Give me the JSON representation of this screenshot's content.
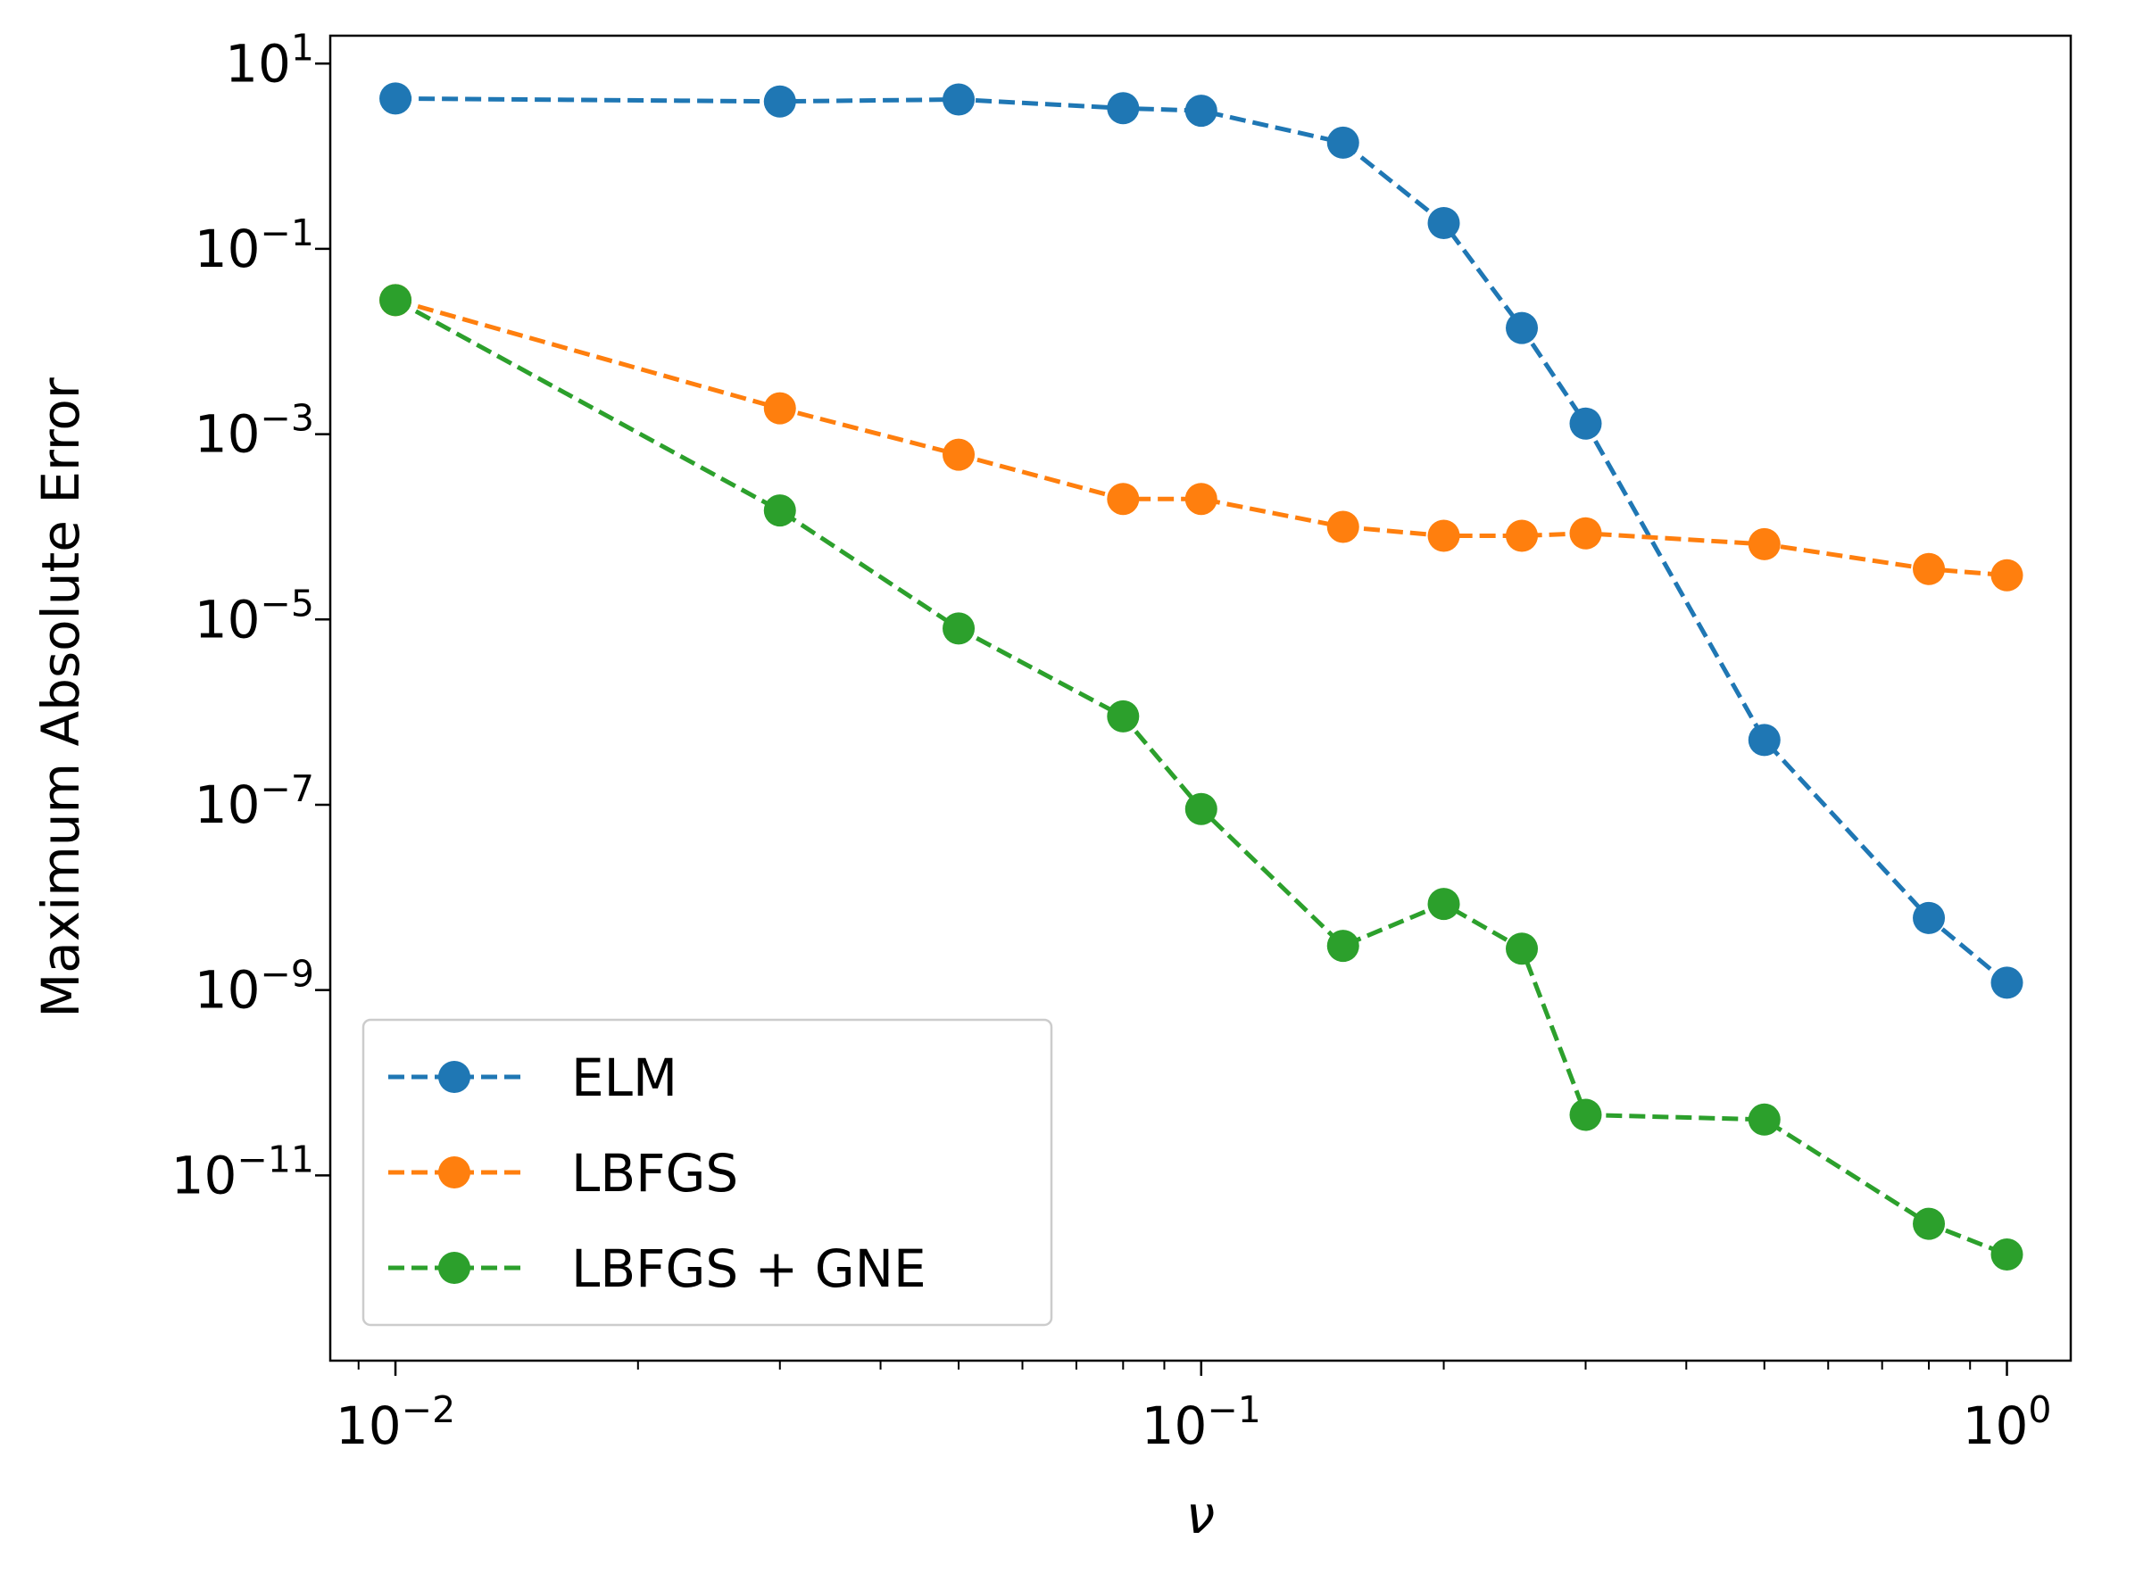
{
  "chart_data": {
    "type": "line",
    "title": "",
    "xlabel": "ν",
    "ylabel": "Maximum Absolute Error",
    "xscale": "log",
    "yscale": "log",
    "xlim": [
      0.0083,
      1.2
    ],
    "ylim": [
      1e-13,
      20
    ],
    "x": [
      0.01,
      0.03,
      0.05,
      0.08,
      0.1,
      0.15,
      0.2,
      0.25,
      0.3,
      0.5,
      0.8,
      1.0
    ],
    "xticks": [
      {
        "value": 0.01,
        "base": "10",
        "exp": "−2"
      },
      {
        "value": 0.1,
        "base": "10",
        "exp": "−1"
      },
      {
        "value": 1,
        "base": "10",
        "exp": "0"
      }
    ],
    "yticks": [
      {
        "value": 10,
        "base": "10",
        "exp": "1"
      },
      {
        "value": 0.1,
        "base": "10",
        "exp": "−1"
      },
      {
        "value": 0.001,
        "base": "10",
        "exp": "−3"
      },
      {
        "value": 1e-05,
        "base": "10",
        "exp": "−5"
      },
      {
        "value": 1e-07,
        "base": "10",
        "exp": "−7"
      },
      {
        "value": 1e-09,
        "base": "10",
        "exp": "−9"
      },
      {
        "value": 1e-11,
        "base": "10",
        "exp": "−11"
      }
    ],
    "series": [
      {
        "name": "ELM",
        "color": "#1f77b4",
        "values": [
          4.2,
          3.9,
          4.1,
          3.3,
          3.1,
          1.4,
          0.19,
          0.014,
          0.0013,
          5e-07,
          6e-09,
          1.2e-09
        ]
      },
      {
        "name": "LBFGS",
        "color": "#ff7f0e",
        "values": [
          0.028,
          0.0019,
          0.0006,
          0.0002,
          0.0002,
          0.0001,
          8e-05,
          8e-05,
          8.5e-05,
          6.5e-05,
          3.5e-05,
          3e-05
        ]
      },
      {
        "name": "LBFGS + GNE",
        "color": "#2ca02c",
        "values": [
          0.028,
          0.00015,
          8e-06,
          9e-07,
          9e-08,
          3e-09,
          8.5e-09,
          2.8e-09,
          4.5e-11,
          4e-11,
          3e-12,
          1.4e-12
        ]
      }
    ],
    "legend_position": "lower-left",
    "grid": false
  }
}
